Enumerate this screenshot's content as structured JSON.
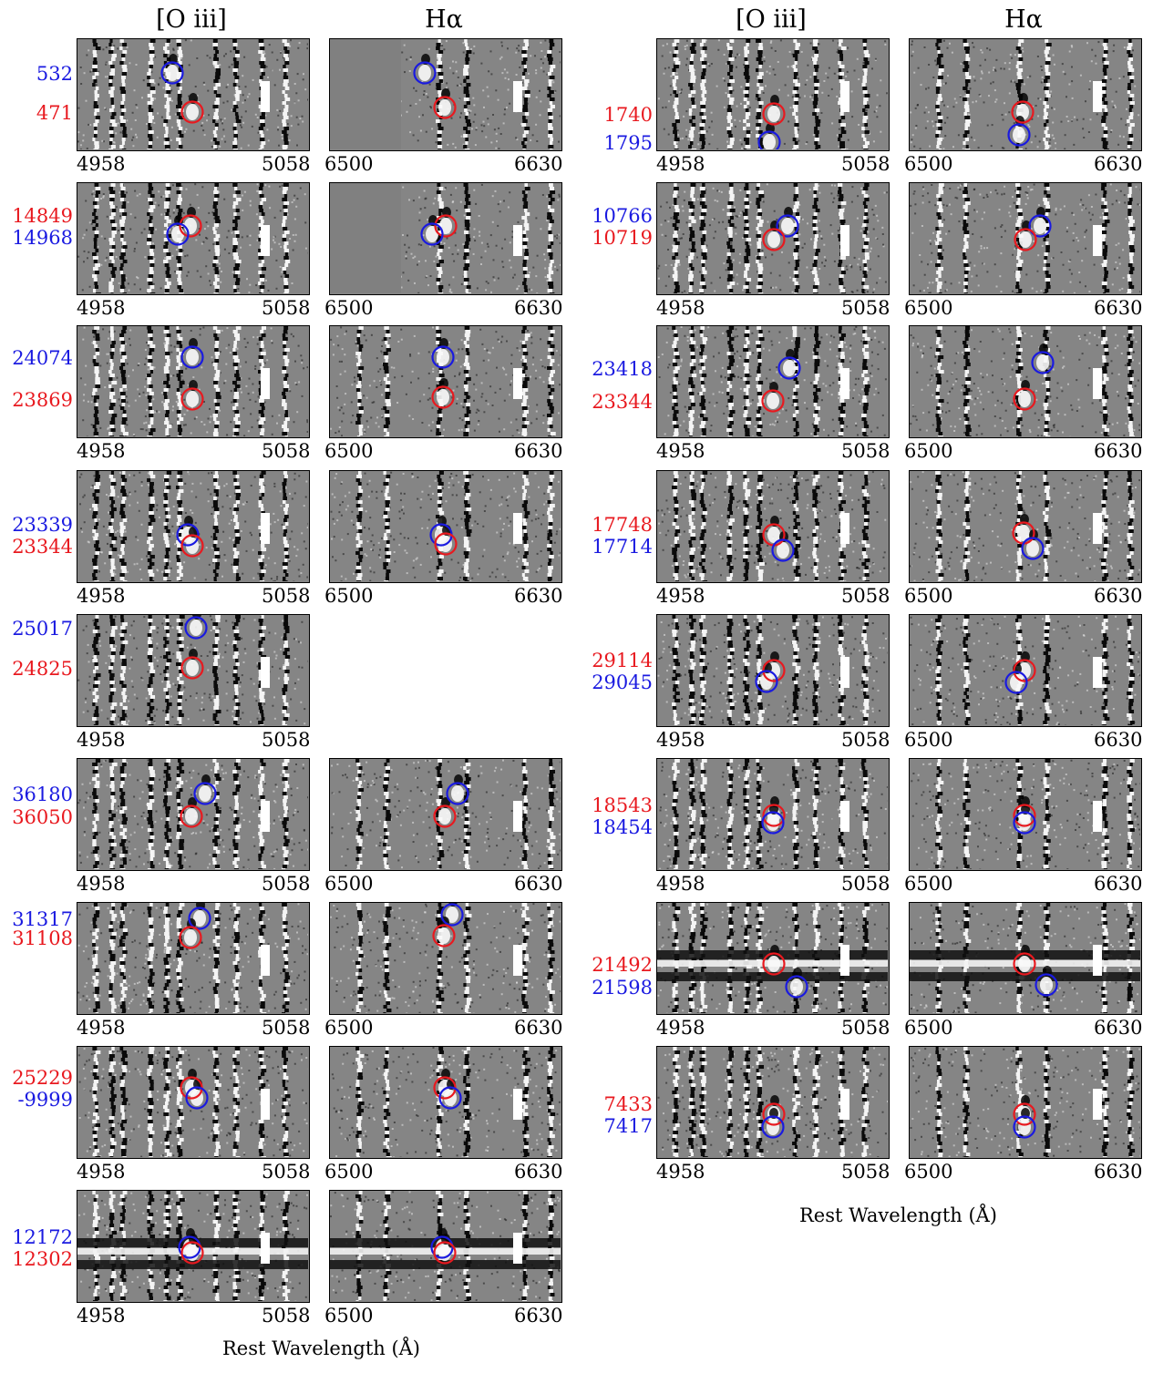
{
  "column_headers": {
    "oiii": "[O iii]",
    "halpha": "Hα"
  },
  "axis_title": "Rest Wavelength (Å)",
  "wavelength_ranges": {
    "oiii": [
      "4958",
      "5058"
    ],
    "halpha": [
      "6500",
      "6630"
    ]
  },
  "colors": {
    "red_marker": "#e8191f",
    "blue_marker": "#1a1ae0"
  },
  "left_column": [
    {
      "id_top": "532",
      "id_top_color": "blue",
      "id_bottom": "471",
      "id_bottom_color": "red",
      "oiii": true,
      "halpha": true
    },
    {
      "id_top": "14849",
      "id_top_color": "red",
      "id_bottom": "14968",
      "id_bottom_color": "blue",
      "oiii": true,
      "halpha": true
    },
    {
      "id_top": "24074",
      "id_top_color": "blue",
      "id_bottom": "23869",
      "id_bottom_color": "red",
      "oiii": true,
      "halpha": true
    },
    {
      "id_top": "23339",
      "id_top_color": "blue",
      "id_bottom": "23344",
      "id_bottom_color": "red",
      "oiii": true,
      "halpha": true
    },
    {
      "id_top": "25017",
      "id_top_color": "blue",
      "id_bottom": "24825",
      "id_bottom_color": "red",
      "oiii": true,
      "halpha": false
    },
    {
      "id_top": "36180",
      "id_top_color": "blue",
      "id_bottom": "36050",
      "id_bottom_color": "red",
      "oiii": true,
      "halpha": true
    },
    {
      "id_top": "31317",
      "id_top_color": "blue",
      "id_bottom": "31108",
      "id_bottom_color": "red",
      "oiii": true,
      "halpha": true
    },
    {
      "id_top": "25229",
      "id_top_color": "red",
      "id_bottom": "-9999",
      "id_bottom_color": "blue",
      "oiii": true,
      "halpha": true
    },
    {
      "id_top": "12172",
      "id_top_color": "blue",
      "id_bottom": "12302",
      "id_bottom_color": "red",
      "oiii": true,
      "halpha": true
    }
  ],
  "right_column": [
    {
      "id_top": "1740",
      "id_top_color": "red",
      "id_bottom": "1795",
      "id_bottom_color": "blue",
      "oiii": true,
      "halpha": true
    },
    {
      "id_top": "10766",
      "id_top_color": "blue",
      "id_bottom": "10719",
      "id_bottom_color": "red",
      "oiii": true,
      "halpha": true
    },
    {
      "id_top": "23418",
      "id_top_color": "blue",
      "id_bottom": "23344",
      "id_bottom_color": "red",
      "oiii": true,
      "halpha": true
    },
    {
      "id_top": "17748",
      "id_top_color": "red",
      "id_bottom": "17714",
      "id_bottom_color": "blue",
      "oiii": true,
      "halpha": true
    },
    {
      "id_top": "29114",
      "id_top_color": "red",
      "id_bottom": "29045",
      "id_bottom_color": "blue",
      "oiii": true,
      "halpha": true
    },
    {
      "id_top": "18543",
      "id_top_color": "red",
      "id_bottom": "18454",
      "id_bottom_color": "blue",
      "oiii": true,
      "halpha": true
    },
    {
      "id_top": "21492",
      "id_top_color": "red",
      "id_bottom": "21598",
      "id_bottom_color": "blue",
      "oiii": true,
      "halpha": true
    },
    {
      "id_top": "7433",
      "id_top_color": "red",
      "id_bottom": "7417",
      "id_bottom_color": "blue",
      "oiii": true,
      "halpha": true
    }
  ]
}
